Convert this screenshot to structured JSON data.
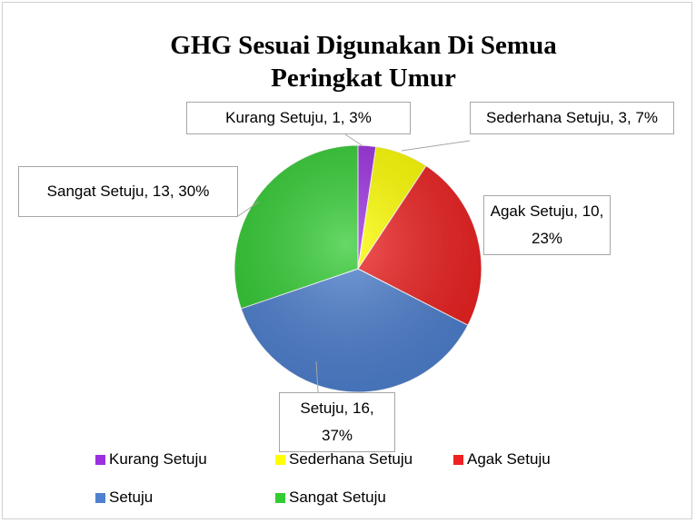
{
  "chart_data": {
    "type": "pie",
    "title": "GHG Sesuai Digunakan Di Semua Peringkat Umur",
    "categories": [
      "Kurang Setuju",
      "Sederhana Setuju",
      "Agak Setuju",
      "Setuju",
      "Sangat Setuju"
    ],
    "values": [
      1,
      3,
      10,
      16,
      13
    ],
    "value_labels": [
      "Kurang Setuju, 1, 3%",
      "Sederhana Setuju, 3, 7%",
      "Agak Setuju, 10, 23%",
      "Setuju, 16, 37%",
      "Sangat Setuju, 13, 30%"
    ],
    "colors": [
      "#9b30e0",
      "#ffff00",
      "#ee2222",
      "#4f81d0",
      "#33cc33"
    ],
    "legend": "bottom"
  }
}
